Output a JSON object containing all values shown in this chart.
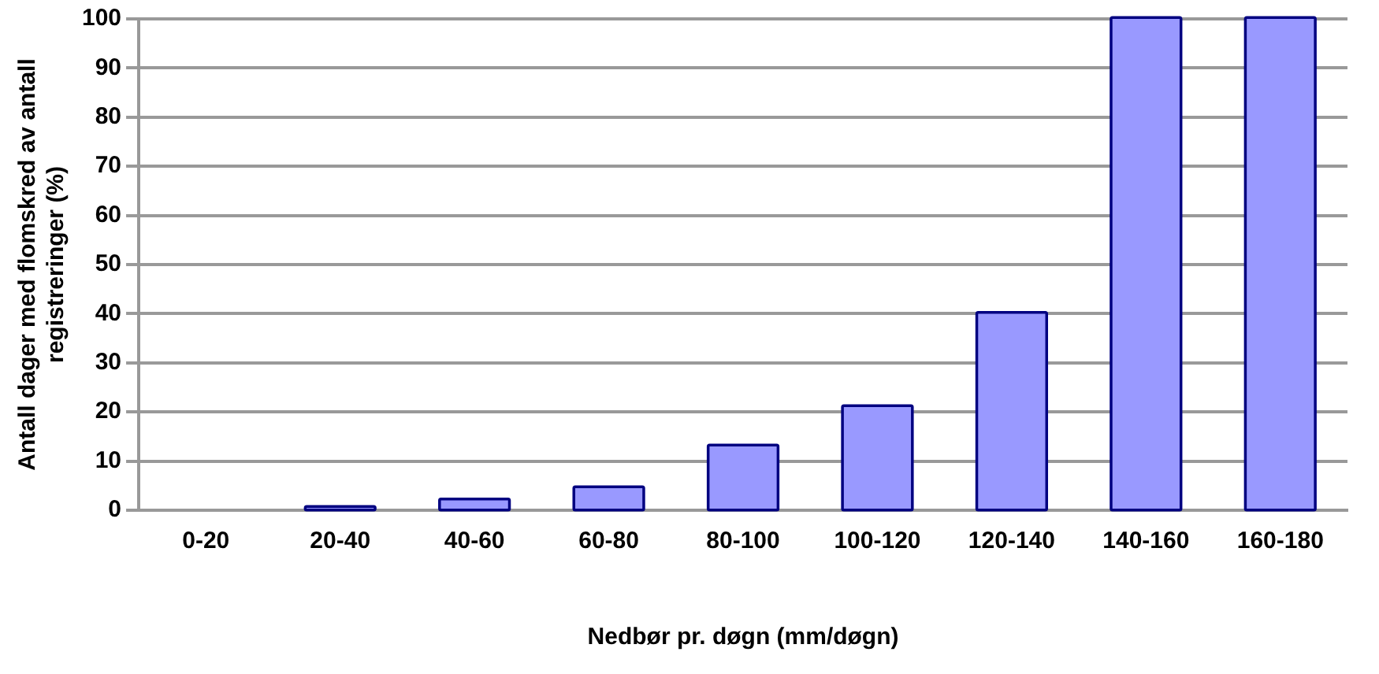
{
  "chart_data": {
    "type": "bar",
    "xlabel": "Nedbør pr. døgn (mm/døgn)",
    "ylabel": "Antall dager med flomskred av antall registreringer (%)",
    "categories": [
      "0-20",
      "20-40",
      "40-60",
      "60-80",
      "80-100",
      "100-120",
      "120-140",
      "140-160",
      "160-180"
    ],
    "values": [
      0,
      0.5,
      2,
      4.5,
      13,
      21,
      40,
      100,
      100
    ],
    "color": "#9999ff",
    "ylim": [
      0,
      100
    ],
    "yticks": [
      0,
      10,
      20,
      30,
      40,
      50,
      60,
      70,
      80,
      90,
      100
    ],
    "grid": "y"
  }
}
